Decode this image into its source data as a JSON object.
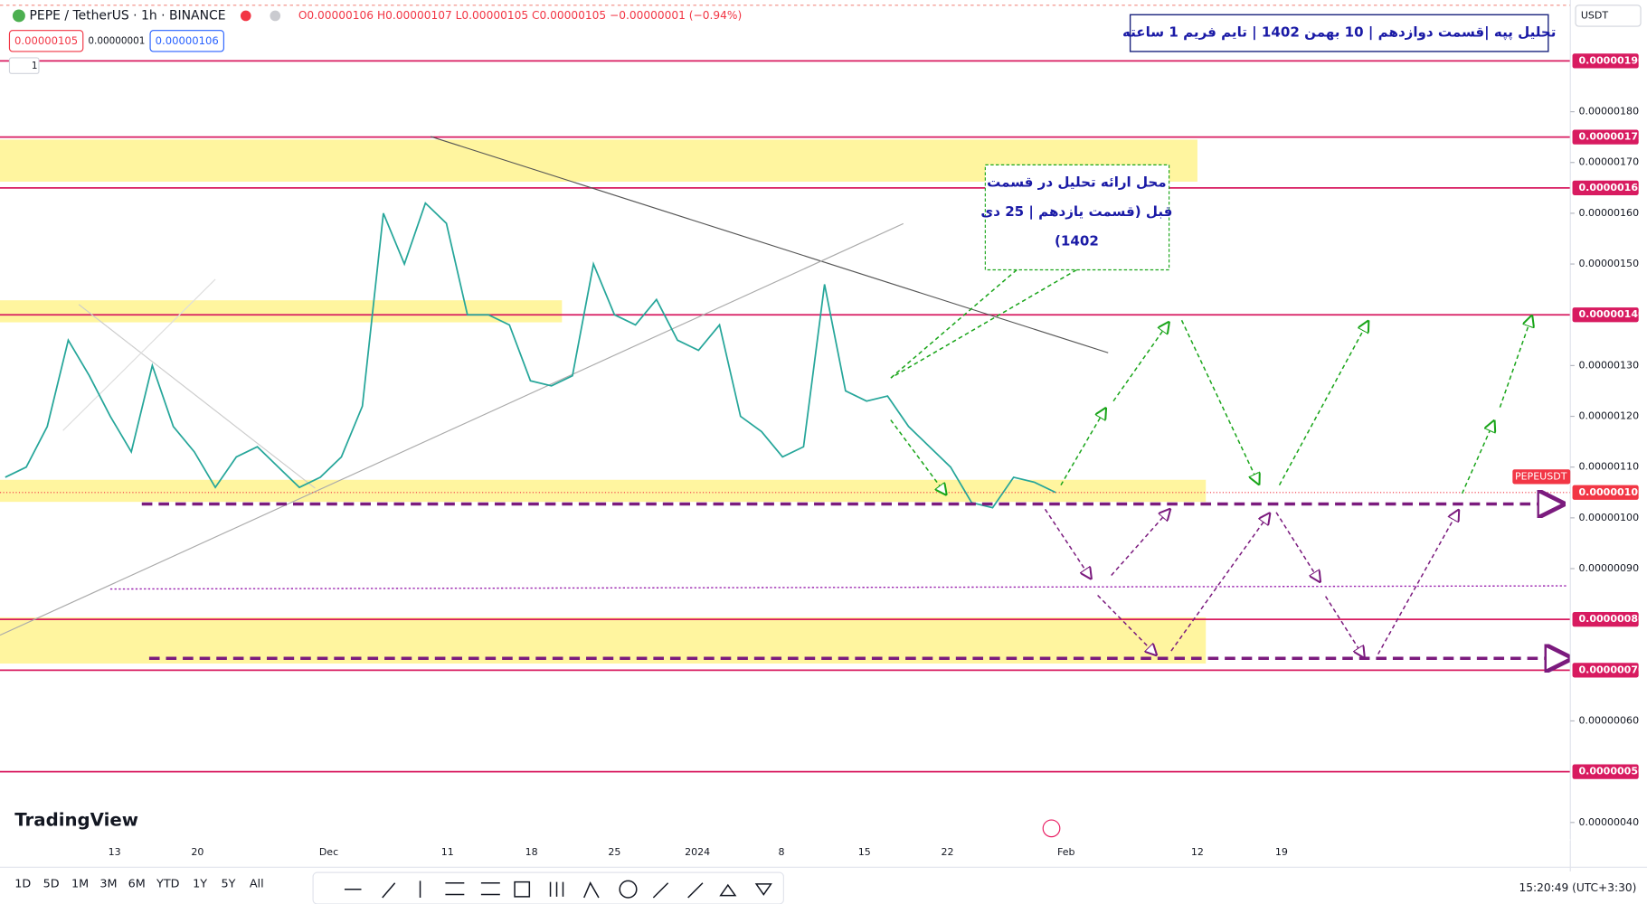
{
  "header": {
    "symbol": "PEPE / TetherUS · 1h · BINANCE",
    "ohlc": "O0.00000106 H0.00000107 L0.00000105 C0.00000105 −0.00000001 (−0.94%)",
    "sell": "0.00000105",
    "spread": "0.00000001",
    "buy": "0.00000106",
    "indicators": "1",
    "currency": "USDT"
  },
  "chart_data": {
    "type": "line",
    "title": "تحلیل پپه |قسمت دوازدهم | 10 بهمن 1402 | تایم فریم 1 ساعته",
    "annotation": [
      "محل ارائه تحلیل در قسمت",
      "قبل (قسمت یازدهم | 25 دی",
      "1402)"
    ],
    "values": [
      1.08e-06,
      1.1e-06,
      1.18e-06,
      1.35e-06,
      1.28e-06,
      1.2e-06,
      1.13e-06,
      1.3e-06,
      1.18e-06,
      1.13e-06,
      1.06e-06,
      1.12e-06,
      1.14e-06,
      1.1e-06,
      1.06e-06,
      1.08e-06,
      1.12e-06,
      1.22e-06,
      1.6e-06,
      1.5e-06,
      1.62e-06,
      1.58e-06,
      1.4e-06,
      1.4e-06,
      1.38e-06,
      1.27e-06,
      1.26e-06,
      1.28e-06,
      1.5e-06,
      1.4e-06,
      1.38e-06,
      1.43e-06,
      1.35e-06,
      1.33e-06,
      1.38e-06,
      1.2e-06,
      1.17e-06,
      1.12e-06,
      1.14e-06,
      1.46e-06,
      1.25e-06,
      1.23e-06,
      1.24e-06,
      1.18e-06,
      1.14e-06,
      1.1e-06,
      1.03e-06,
      1.02e-06,
      1.08e-06,
      1.07e-06,
      1.05e-06
    ],
    "color": "#26a69a",
    "xtick_labels": [
      "13",
      "20",
      "Dec",
      "11",
      "18",
      "25",
      "2024",
      "8",
      "15",
      "22",
      "Feb",
      "12",
      "19"
    ],
    "ylim": [
      3.656e-07,
      2.02e-06
    ],
    "yticks": [
      {
        "value": 1.8e-06,
        "label": "0.00000180"
      },
      {
        "value": 1.7e-06,
        "label": "0.00000170"
      },
      {
        "value": 1.6e-06,
        "label": "0.00000160"
      },
      {
        "value": 1.5e-06,
        "label": "0.00000150"
      },
      {
        "value": 1.3e-06,
        "label": "0.00000130"
      },
      {
        "value": 1.2e-06,
        "label": "0.00000120"
      },
      {
        "value": 1.1e-06,
        "label": "0.00000110"
      },
      {
        "value": 1e-06,
        "label": "0.00000100"
      },
      {
        "value": 9e-07,
        "label": "0.00000090"
      },
      {
        "value": 6e-07,
        "label": "0.00000060"
      },
      {
        "value": 4e-07,
        "label": "0.00000040"
      }
    ],
    "levels": [
      {
        "value": 1.9e-06,
        "label": "0.00000190"
      },
      {
        "value": 1.75e-06,
        "label": "0.00000175"
      },
      {
        "value": 1.65e-06,
        "label": "0.00000165"
      },
      {
        "value": 1.4e-06,
        "label": "0.00000140"
      },
      {
        "value": 8e-07,
        "label": "0.00000080"
      },
      {
        "value": 7e-07,
        "label": "0.00000070"
      },
      {
        "value": 5e-07,
        "label": "0.00000050"
      }
    ],
    "level_color": "#d81b60",
    "last_price": {
      "name": "PEPEUSDT",
      "value": 1.05e-06,
      "label": "0.00000105"
    }
  },
  "footer": {
    "ranges": [
      "1D",
      "5D",
      "1M",
      "3M",
      "6M",
      "YTD",
      "1Y",
      "5Y",
      "All"
    ],
    "clock": "15:20:49 (UTC+3:30)",
    "brand": "TradingView"
  }
}
